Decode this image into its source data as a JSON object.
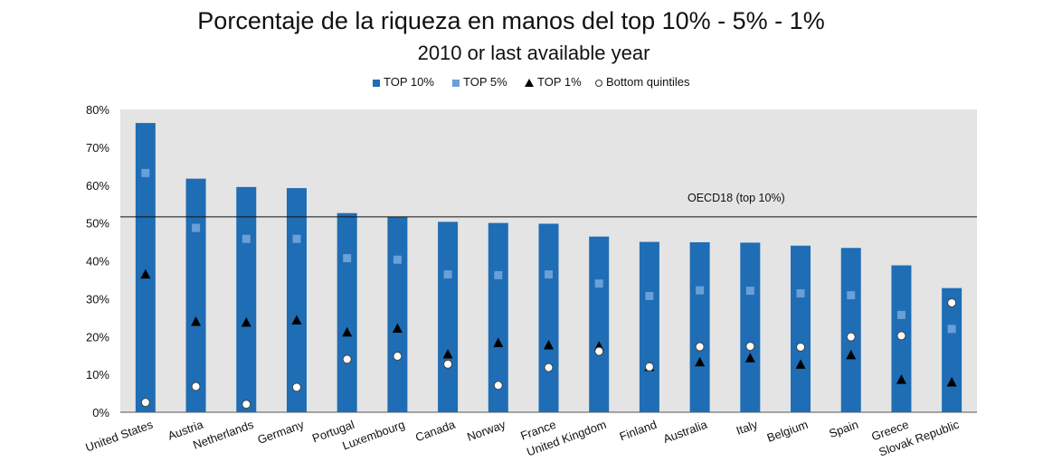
{
  "chart_data": {
    "type": "bar",
    "title": "Porcentaje de la riqueza en manos del top 10% - 5% - 1%",
    "subtitle": "2010 or last available year",
    "ylim": [
      0,
      80
    ],
    "yticks": [
      "0%",
      "10%",
      "20%",
      "30%",
      "40%",
      "50%",
      "60%",
      "70%",
      "80%"
    ],
    "ytick_values": [
      0,
      10,
      20,
      30,
      40,
      50,
      60,
      70,
      80
    ],
    "grid": false,
    "legend_position": "top",
    "categories": [
      "United States",
      "Austria",
      "Netherlands",
      "Germany",
      "Portugal",
      "Luxembourg",
      "Canada",
      "Norway",
      "France",
      "United Kingdom",
      "Finland",
      "Australia",
      "Italy",
      "Belgium",
      "Spain",
      "Greece",
      "Slovak Republic"
    ],
    "series": [
      {
        "name": "TOP 10%",
        "marker": "bar",
        "color": "#1f6db4",
        "values": [
          76.4,
          61.7,
          59.5,
          59.2,
          52.6,
          51.6,
          50.3,
          50.0,
          49.8,
          46.4,
          45.0,
          44.9,
          44.8,
          44.0,
          43.4,
          38.8,
          32.8
        ]
      },
      {
        "name": "TOP 5%",
        "marker": "square",
        "color": "#6a9fd8",
        "values": [
          63.2,
          48.7,
          45.8,
          45.8,
          40.7,
          40.3,
          36.4,
          36.2,
          36.4,
          34.0,
          30.7,
          32.2,
          32.1,
          31.4,
          30.9,
          25.7,
          22.0
        ]
      },
      {
        "name": "TOP 1%",
        "marker": "triangle",
        "color": "#000000",
        "values": [
          36.5,
          24.0,
          23.8,
          24.4,
          21.2,
          22.2,
          15.4,
          18.4,
          17.8,
          17.5,
          12.1,
          13.3,
          14.4,
          12.7,
          15.2,
          8.7,
          8.0
        ]
      },
      {
        "name": "Bottom quintiles",
        "marker": "circle",
        "color": "#ffffff",
        "values": [
          2.6,
          6.8,
          2.1,
          6.6,
          14.0,
          14.8,
          12.7,
          7.1,
          11.8,
          16.1,
          12.0,
          17.3,
          17.4,
          17.2,
          19.9,
          20.2,
          28.9
        ]
      }
    ],
    "reference_line": {
      "label": "OECD18  (top 10%)",
      "value": 51.6
    },
    "colors": {
      "plot_background": "#e4e4e4",
      "bar": "#1f6db4",
      "top5": "#6a9fd8",
      "top1": "#000000",
      "reference_line": "#111111"
    }
  }
}
